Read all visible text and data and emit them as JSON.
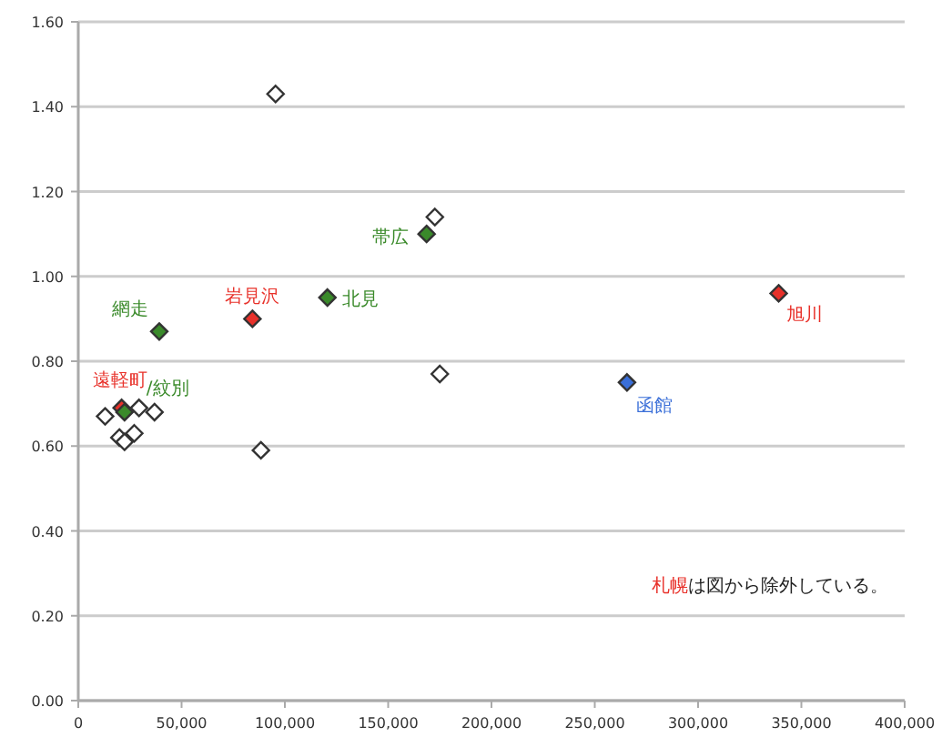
{
  "chart_data": {
    "type": "scatter",
    "marker": "diamond",
    "grid": "y",
    "xlim": [
      0,
      400000
    ],
    "xticks": [
      {
        "value": 0,
        "label": "0"
      },
      {
        "value": 50000,
        "label": "50,000"
      },
      {
        "value": 100000,
        "label": "100,000"
      },
      {
        "value": 150000,
        "label": "150,000"
      },
      {
        "value": 200000,
        "label": "200,000"
      },
      {
        "value": 250000,
        "label": "250,000"
      },
      {
        "value": 300000,
        "label": "300,000"
      },
      {
        "value": 350000,
        "label": "350,000"
      },
      {
        "value": 400000,
        "label": "400,000"
      }
    ],
    "ylim": [
      0,
      1.6
    ],
    "yticks": [
      {
        "value": 0,
        "label": "0.00"
      },
      {
        "value": 0.2,
        "label": "0.20"
      },
      {
        "value": 0.4,
        "label": "0.40"
      },
      {
        "value": 0.6,
        "label": "0.60"
      },
      {
        "value": 0.8,
        "label": "0.80"
      },
      {
        "value": 1.0,
        "label": "1.00"
      },
      {
        "value": 1.2,
        "label": "1.20"
      },
      {
        "value": 1.4,
        "label": "1.40"
      },
      {
        "value": 1.6,
        "label": "1.60"
      }
    ],
    "series": [
      {
        "color": "#ffffff",
        "x": [
          95500,
          172600,
          175000,
          13000,
          29400,
          36900,
          19900,
          22400,
          27100,
          88400
        ],
        "values": [
          1.43,
          1.14,
          0.77,
          0.67,
          0.69,
          0.68,
          0.62,
          0.61,
          0.63,
          0.59
        ]
      },
      {
        "color": "#e8312a",
        "x": [
          84300,
          339000,
          21000
        ],
        "values": [
          0.9,
          0.96,
          0.69
        ]
      },
      {
        "color": "#3a8a2a",
        "x": [
          168600,
          120600,
          39200,
          22400
        ],
        "values": [
          1.1,
          0.95,
          0.87,
          0.68
        ]
      },
      {
        "color": "#3a6fd8",
        "x": [
          265600
        ],
        "values": [
          0.75
        ]
      }
    ],
    "annotations": [
      {
        "text": "帯広",
        "x": 168600,
        "y": 1.1
      },
      {
        "text": "北見",
        "x": 120600,
        "y": 0.95
      },
      {
        "text": "岩見沢",
        "x": 84300,
        "y": 0.9
      },
      {
        "text": "網走",
        "x": 39200,
        "y": 0.87
      },
      {
        "text": "遠軽町",
        "x": 21000,
        "y": 0.69
      },
      {
        "text": "/紋別",
        "x": 22400,
        "y": 0.68
      },
      {
        "text": "旭川",
        "x": 339000,
        "y": 0.96
      },
      {
        "text": "函館",
        "x": 265600,
        "y": 0.75
      },
      "札幌",
      "は図から除外している。"
    ]
  }
}
